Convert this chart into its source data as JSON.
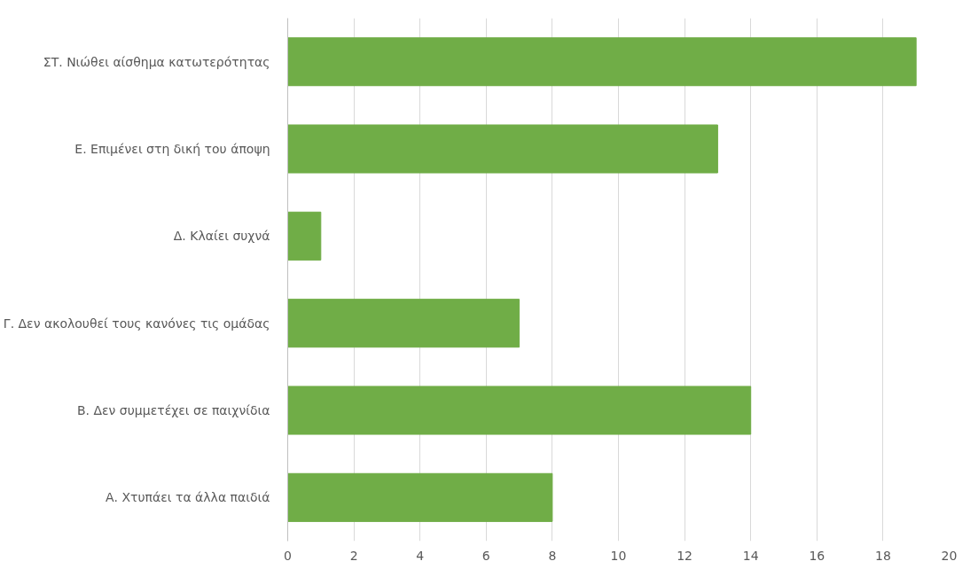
{
  "chart_data": {
    "type": "bar",
    "orientation": "horizontal",
    "categories": [
      "ΣΤ. Νιώθει αίσθημα κατωτερότητας",
      "Ε. Επιμένει στη δική του άποψη",
      "Δ. Κλαίει συχνά",
      "Γ. Δεν ακολουθεί τους κανόνες τις ομάδας",
      "Β. Δεν συμμετέχει σε παιχνίδια",
      "Α. Χτυπάει τα άλλα παιδιά"
    ],
    "values": [
      19,
      13,
      1,
      7,
      14,
      8
    ],
    "color": "#70ad47",
    "xlim": [
      0,
      20
    ],
    "xticks": [
      0,
      2,
      4,
      6,
      8,
      10,
      12,
      14,
      16,
      18,
      20
    ],
    "grid": "x"
  }
}
